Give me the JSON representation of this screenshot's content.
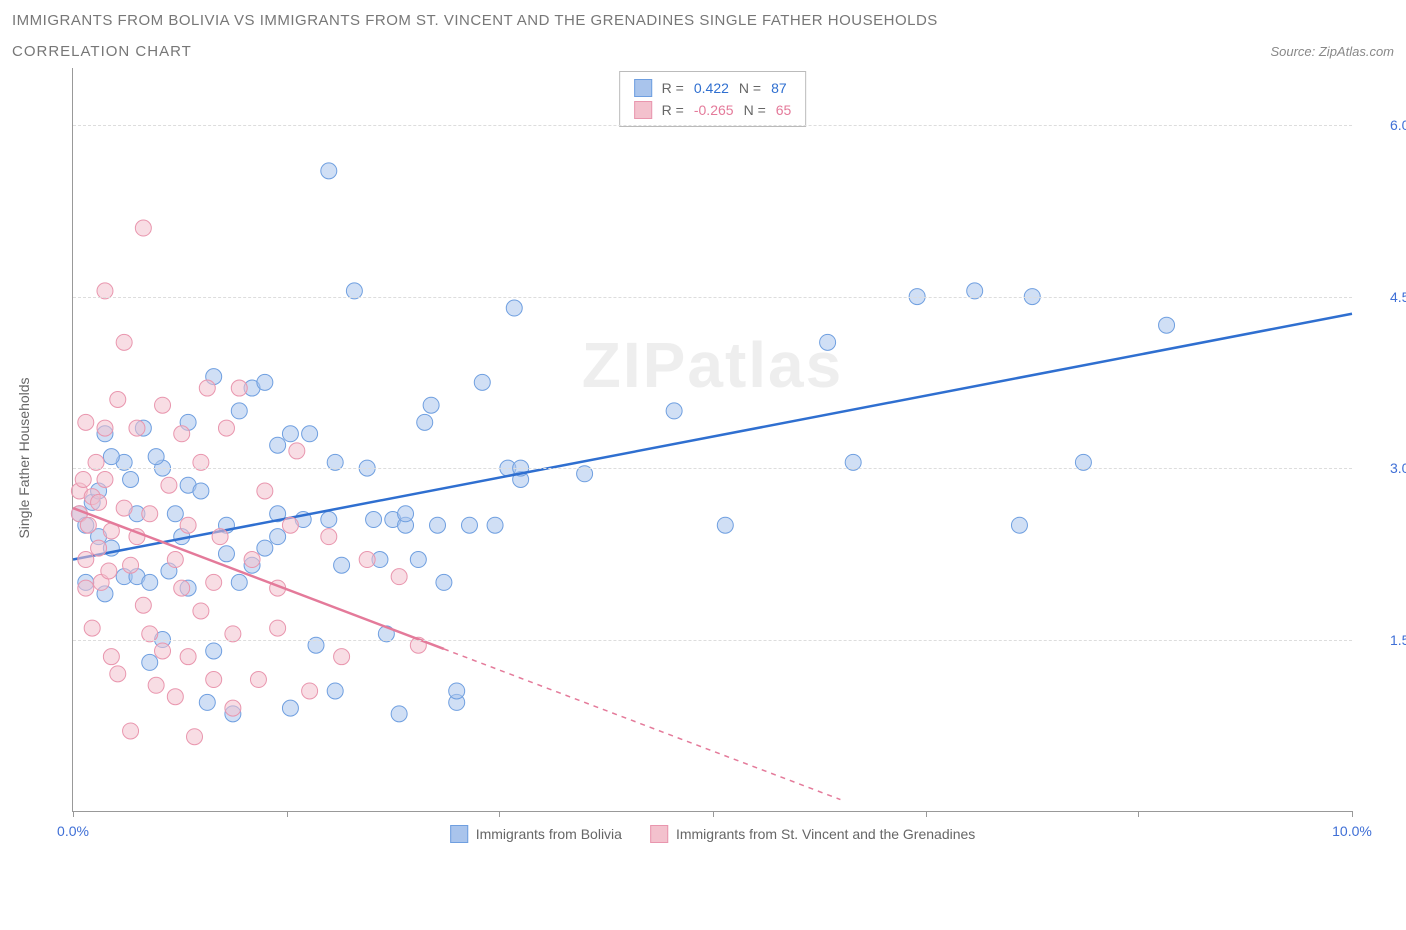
{
  "title_line1": "IMMIGRANTS FROM BOLIVIA VS IMMIGRANTS FROM ST. VINCENT AND THE GRENADINES SINGLE FATHER HOUSEHOLDS",
  "title_line2": "CORRELATION CHART",
  "source": "Source: ZipAtlas.com",
  "watermark": "ZIPatlas",
  "ylabel": "Single Father Households",
  "xlim": [
    0.0,
    10.0
  ],
  "ylim": [
    0.0,
    6.5
  ],
  "x_ticks": [
    0.0,
    1.67,
    3.33,
    5.0,
    6.67,
    8.33,
    10.0
  ],
  "x_tick_labels_shown": {
    "0": "0.0%",
    "6": "10.0%"
  },
  "x_tick_label_color": "#3f6fd6",
  "y_ticks": [
    1.5,
    3.0,
    4.5,
    6.0
  ],
  "y_tick_labels": [
    "1.5%",
    "3.0%",
    "4.5%",
    "6.0%"
  ],
  "y_tick_label_color": "#3f6fd6",
  "grid_color": "#dddddd",
  "axis_color": "#999999",
  "background_color": "#ffffff",
  "series": [
    {
      "key": "bolivia",
      "label": "Immigrants from Bolivia",
      "color_fill": "#a9c4ec",
      "color_stroke": "#6f9fe0",
      "line_color": "#2f6fd0",
      "R": "0.422",
      "N": "87",
      "marker_radius": 8,
      "marker_opacity": 0.55,
      "regression": {
        "x1": 0.0,
        "y1": 2.2,
        "x2": 10.0,
        "y2": 4.35,
        "dashed_from_x": null
      },
      "points": [
        [
          0.05,
          2.6
        ],
        [
          0.1,
          2.0
        ],
        [
          0.1,
          2.5
        ],
        [
          0.15,
          2.7
        ],
        [
          0.2,
          2.8
        ],
        [
          0.2,
          2.4
        ],
        [
          0.25,
          1.9
        ],
        [
          0.25,
          3.3
        ],
        [
          0.3,
          2.3
        ],
        [
          0.4,
          2.05
        ],
        [
          0.4,
          3.05
        ],
        [
          0.45,
          2.9
        ],
        [
          0.5,
          2.05
        ],
        [
          0.5,
          2.6
        ],
        [
          0.6,
          1.3
        ],
        [
          0.6,
          2.0
        ],
        [
          0.7,
          3.0
        ],
        [
          0.7,
          1.5
        ],
        [
          0.75,
          2.1
        ],
        [
          0.8,
          2.6
        ],
        [
          0.85,
          2.4
        ],
        [
          0.9,
          1.95
        ],
        [
          0.9,
          2.85
        ],
        [
          1.0,
          2.8
        ],
        [
          1.05,
          0.95
        ],
        [
          1.1,
          1.4
        ],
        [
          1.1,
          3.8
        ],
        [
          1.2,
          2.25
        ],
        [
          1.2,
          2.5
        ],
        [
          1.25,
          0.85
        ],
        [
          1.3,
          2.0
        ],
        [
          1.4,
          3.7
        ],
        [
          1.4,
          2.15
        ],
        [
          1.5,
          3.75
        ],
        [
          1.5,
          2.3
        ],
        [
          1.6,
          2.4
        ],
        [
          1.6,
          2.6
        ],
        [
          1.7,
          0.9
        ],
        [
          1.7,
          3.3
        ],
        [
          1.8,
          2.55
        ],
        [
          1.85,
          3.3
        ],
        [
          1.9,
          1.45
        ],
        [
          2.0,
          2.55
        ],
        [
          2.0,
          5.6
        ],
        [
          2.05,
          1.05
        ],
        [
          2.1,
          2.15
        ],
        [
          2.2,
          4.55
        ],
        [
          2.3,
          3.0
        ],
        [
          2.35,
          2.55
        ],
        [
          2.4,
          2.2
        ],
        [
          2.45,
          1.55
        ],
        [
          2.5,
          2.55
        ],
        [
          2.55,
          0.85
        ],
        [
          2.6,
          2.5
        ],
        [
          2.6,
          2.6
        ],
        [
          2.7,
          2.2
        ],
        [
          2.75,
          3.4
        ],
        [
          2.8,
          3.55
        ],
        [
          2.85,
          2.5
        ],
        [
          2.9,
          2.0
        ],
        [
          3.0,
          0.95
        ],
        [
          3.0,
          1.05
        ],
        [
          3.1,
          2.5
        ],
        [
          3.2,
          3.75
        ],
        [
          3.3,
          2.5
        ],
        [
          3.4,
          3.0
        ],
        [
          3.45,
          4.4
        ],
        [
          3.5,
          2.9
        ],
        [
          3.5,
          3.0
        ],
        [
          4.0,
          2.95
        ],
        [
          4.7,
          3.5
        ],
        [
          5.1,
          2.5
        ],
        [
          5.9,
          4.1
        ],
        [
          6.1,
          3.05
        ],
        [
          6.6,
          4.5
        ],
        [
          7.05,
          4.55
        ],
        [
          7.4,
          2.5
        ],
        [
          7.5,
          4.5
        ],
        [
          7.9,
          3.05
        ],
        [
          8.55,
          4.25
        ],
        [
          0.3,
          3.1
        ],
        [
          0.55,
          3.35
        ],
        [
          0.65,
          3.1
        ],
        [
          0.9,
          3.4
        ],
        [
          1.3,
          3.5
        ],
        [
          1.6,
          3.2
        ],
        [
          2.05,
          3.05
        ]
      ]
    },
    {
      "key": "stvincent",
      "label": "Immigrants from St. Vincent and the Grenadines",
      "color_fill": "#f3c1cd",
      "color_stroke": "#e996ae",
      "line_color": "#e47a9a",
      "R": "-0.265",
      "N": "65",
      "marker_radius": 8,
      "marker_opacity": 0.55,
      "regression": {
        "x1": 0.0,
        "y1": 2.65,
        "x2": 6.0,
        "y2": 0.1,
        "dashed_from_x": 2.9
      },
      "points": [
        [
          0.05,
          2.8
        ],
        [
          0.05,
          2.6
        ],
        [
          0.08,
          2.9
        ],
        [
          0.1,
          3.4
        ],
        [
          0.1,
          2.2
        ],
        [
          0.1,
          1.95
        ],
        [
          0.12,
          2.5
        ],
        [
          0.15,
          2.75
        ],
        [
          0.15,
          1.6
        ],
        [
          0.18,
          3.05
        ],
        [
          0.2,
          2.3
        ],
        [
          0.2,
          2.7
        ],
        [
          0.22,
          2.0
        ],
        [
          0.25,
          2.9
        ],
        [
          0.25,
          4.55
        ],
        [
          0.25,
          3.35
        ],
        [
          0.28,
          2.1
        ],
        [
          0.3,
          2.45
        ],
        [
          0.3,
          1.35
        ],
        [
          0.35,
          3.6
        ],
        [
          0.35,
          1.2
        ],
        [
          0.4,
          2.65
        ],
        [
          0.4,
          4.1
        ],
        [
          0.45,
          2.15
        ],
        [
          0.45,
          0.7
        ],
        [
          0.5,
          3.35
        ],
        [
          0.5,
          2.4
        ],
        [
          0.55,
          5.1
        ],
        [
          0.55,
          1.8
        ],
        [
          0.6,
          1.55
        ],
        [
          0.6,
          2.6
        ],
        [
          0.65,
          1.1
        ],
        [
          0.7,
          3.55
        ],
        [
          0.7,
          1.4
        ],
        [
          0.75,
          2.85
        ],
        [
          0.8,
          1.0
        ],
        [
          0.8,
          2.2
        ],
        [
          0.85,
          3.3
        ],
        [
          0.85,
          1.95
        ],
        [
          0.9,
          1.35
        ],
        [
          0.9,
          2.5
        ],
        [
          0.95,
          0.65
        ],
        [
          1.0,
          3.05
        ],
        [
          1.0,
          1.75
        ],
        [
          1.05,
          3.7
        ],
        [
          1.1,
          2.0
        ],
        [
          1.1,
          1.15
        ],
        [
          1.15,
          2.4
        ],
        [
          1.2,
          3.35
        ],
        [
          1.25,
          1.55
        ],
        [
          1.25,
          0.9
        ],
        [
          1.3,
          3.7
        ],
        [
          1.4,
          2.2
        ],
        [
          1.45,
          1.15
        ],
        [
          1.5,
          2.8
        ],
        [
          1.6,
          1.95
        ],
        [
          1.6,
          1.6
        ],
        [
          1.7,
          2.5
        ],
        [
          1.75,
          3.15
        ],
        [
          1.85,
          1.05
        ],
        [
          2.0,
          2.4
        ],
        [
          2.1,
          1.35
        ],
        [
          2.3,
          2.2
        ],
        [
          2.55,
          2.05
        ],
        [
          2.7,
          1.45
        ]
      ]
    }
  ],
  "corr_legend_labels": {
    "R": "R =",
    "N": "N ="
  }
}
